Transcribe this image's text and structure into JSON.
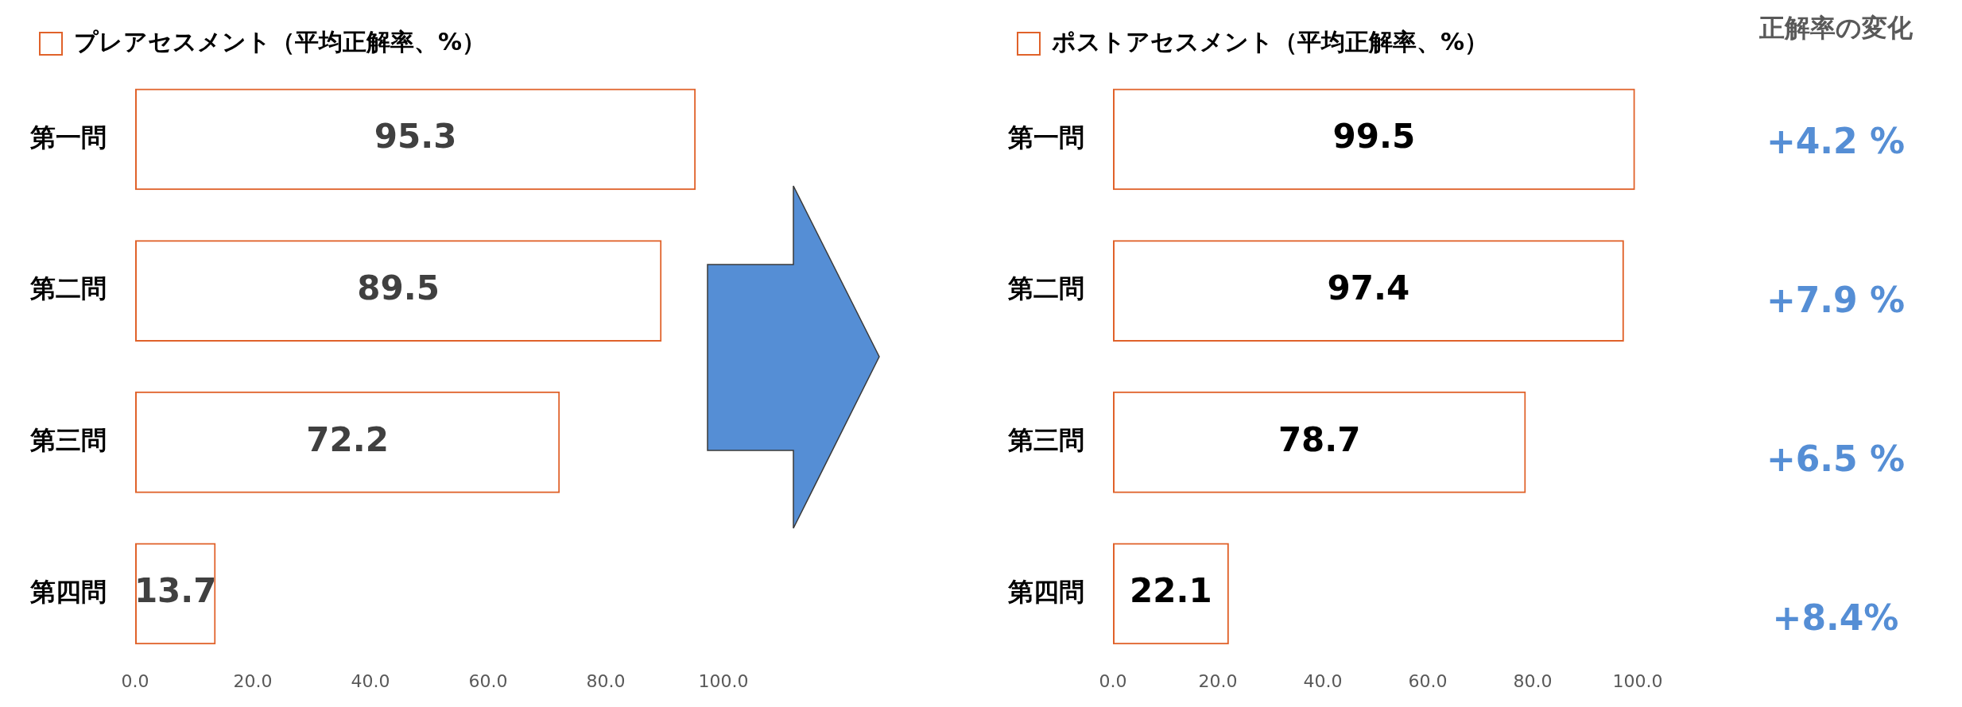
{
  "chart_data": [
    {
      "type": "bar",
      "orientation": "horizontal",
      "categories": [
        "第一問",
        "第二問",
        "第三問",
        "第四問"
      ],
      "series": [
        {
          "name": "プレアセスメント（平均正解率、%）",
          "color": "#e0622a",
          "values": [
            95.3,
            89.5,
            72.2,
            13.7
          ]
        }
      ],
      "xlim": [
        0,
        100
      ],
      "xticks": [
        {
          "value": 0,
          "label": "0.0"
        },
        {
          "value": 20,
          "label": "20.0"
        },
        {
          "value": 40,
          "label": "40.0"
        },
        {
          "value": 60,
          "label": "60.0"
        },
        {
          "value": 80,
          "label": "80.0"
        },
        {
          "value": 100,
          "label": "100.0"
        }
      ],
      "data_labels": true,
      "grid": false,
      "legend": "top left"
    },
    {
      "type": "bar",
      "orientation": "horizontal",
      "categories": [
        "第一問",
        "第二問",
        "第三問",
        "第四問"
      ],
      "series": [
        {
          "name": "ポストアセスメント（平均正解率、%）",
          "color": "#e0622a",
          "values": [
            99.5,
            97.4,
            78.7,
            22.1
          ]
        }
      ],
      "xlim": [
        0,
        100
      ],
      "xticks": [
        {
          "value": 0,
          "label": "0.0"
        },
        {
          "value": 20,
          "label": "20.0"
        },
        {
          "value": 40,
          "label": "40.0"
        },
        {
          "value": 60,
          "label": "60.0"
        },
        {
          "value": 80,
          "label": "80.0"
        },
        {
          "value": 100,
          "label": "100.0"
        }
      ],
      "data_labels": true,
      "grid": false,
      "legend": "top left"
    },
    {
      "type": "other",
      "title": "正解率の変化",
      "annotations": [
        "+4.2 %",
        "+7.9 %",
        "+6.5 %",
        "+8.4%"
      ]
    }
  ]
}
